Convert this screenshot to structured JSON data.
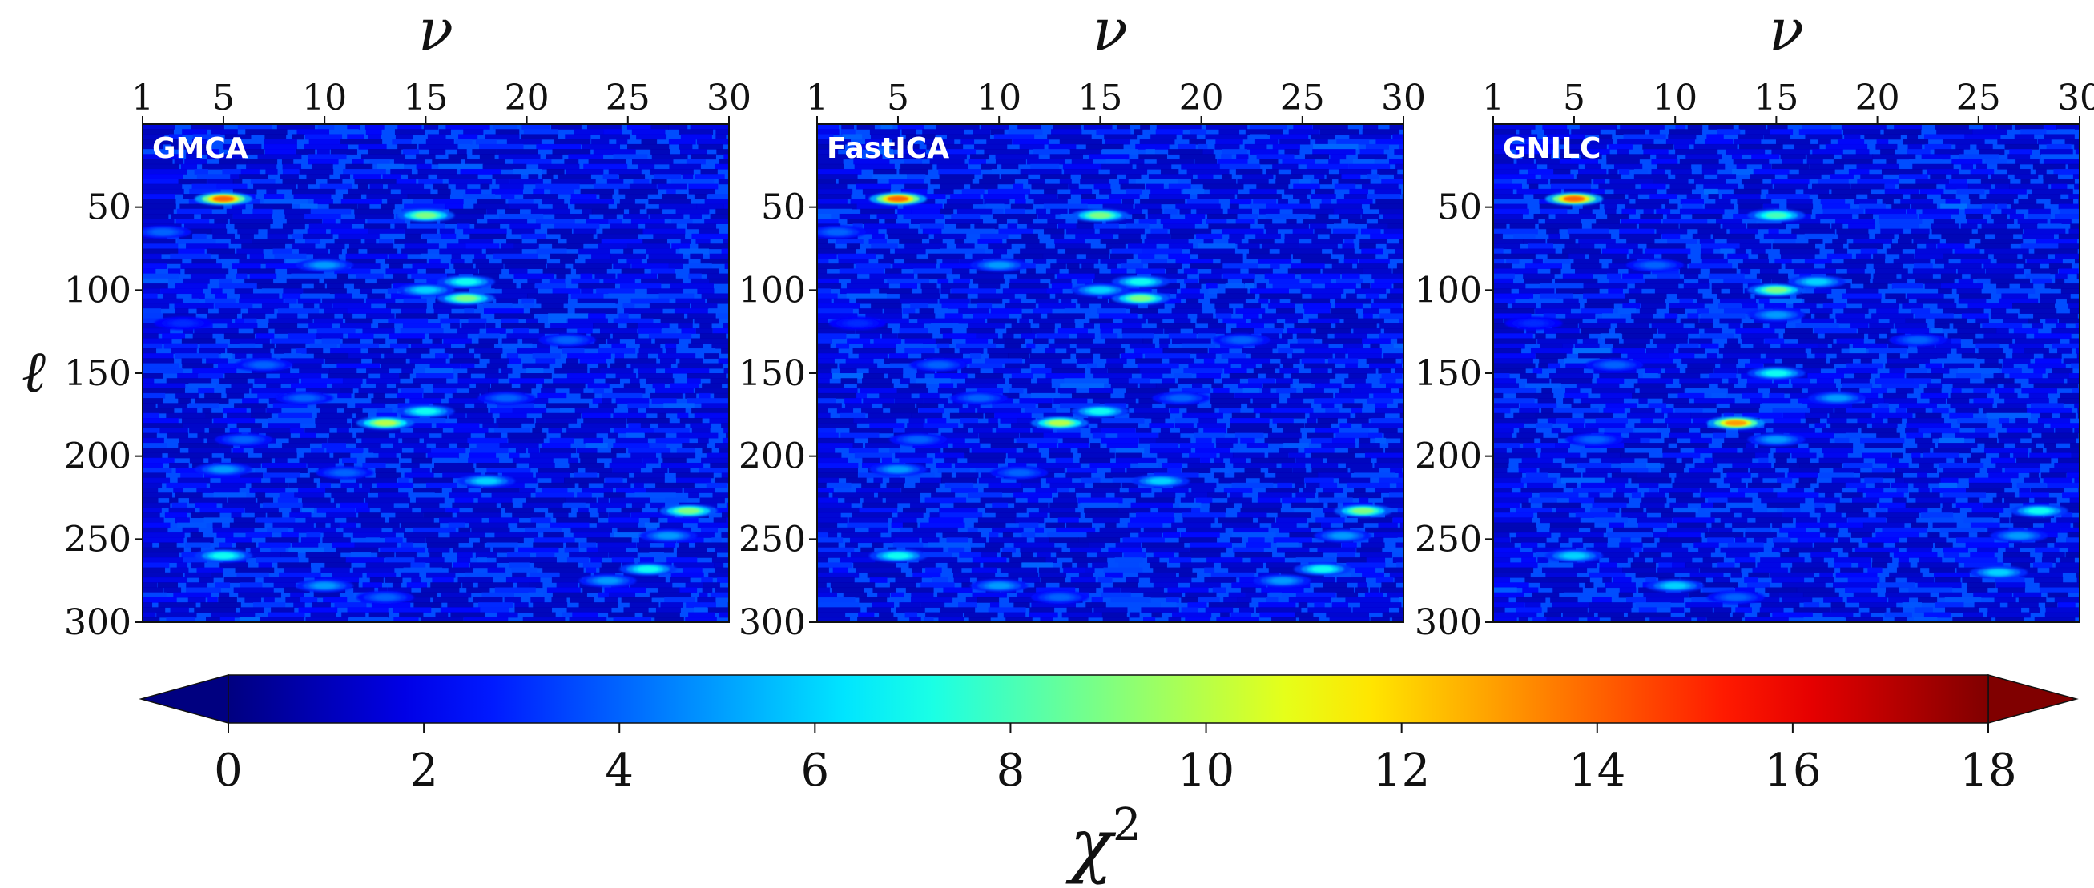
{
  "chart_data": {
    "type": "heatmap",
    "panels": [
      {
        "name": "GMCA",
        "blobs": [
          [
            5,
            45,
            14
          ],
          [
            15,
            55,
            9
          ],
          [
            17,
            95,
            7
          ],
          [
            17,
            105,
            9
          ],
          [
            15,
            100,
            6
          ],
          [
            13,
            180,
            10
          ],
          [
            15,
            173,
            7
          ],
          [
            10,
            85,
            5
          ],
          [
            18,
            215,
            6
          ],
          [
            28,
            233,
            9
          ],
          [
            26,
            268,
            7
          ],
          [
            5,
            260,
            7
          ],
          [
            5,
            208,
            5
          ],
          [
            10,
            278,
            5
          ],
          [
            2,
            65,
            4
          ],
          [
            9,
            165,
            4
          ],
          [
            22,
            130,
            4
          ],
          [
            27,
            248,
            5
          ],
          [
            24,
            275,
            5
          ],
          [
            13,
            285,
            4
          ],
          [
            7,
            145,
            4
          ],
          [
            19,
            165,
            4
          ],
          [
            11,
            210,
            4
          ],
          [
            3,
            120,
            3
          ],
          [
            6,
            190,
            4
          ]
        ]
      },
      {
        "name": "FastICA",
        "blobs": [
          [
            5,
            45,
            14
          ],
          [
            15,
            55,
            9
          ],
          [
            17,
            95,
            7
          ],
          [
            17,
            105,
            9
          ],
          [
            15,
            100,
            6
          ],
          [
            13,
            180,
            10
          ],
          [
            15,
            173,
            7
          ],
          [
            10,
            85,
            5
          ],
          [
            18,
            215,
            6
          ],
          [
            28,
            233,
            9
          ],
          [
            26,
            268,
            7
          ],
          [
            5,
            260,
            7
          ],
          [
            5,
            208,
            5
          ],
          [
            10,
            278,
            5
          ],
          [
            2,
            65,
            4
          ],
          [
            9,
            165,
            4
          ],
          [
            22,
            130,
            4
          ],
          [
            27,
            248,
            5
          ],
          [
            24,
            275,
            5
          ],
          [
            13,
            285,
            4
          ],
          [
            7,
            145,
            4
          ],
          [
            19,
            165,
            4
          ],
          [
            11,
            210,
            4
          ],
          [
            3,
            120,
            3
          ],
          [
            6,
            190,
            4
          ]
        ]
      },
      {
        "name": "GNILC",
        "blobs": [
          [
            5,
            45,
            14
          ],
          [
            15,
            55,
            8
          ],
          [
            15,
            100,
            9
          ],
          [
            15,
            150,
            7
          ],
          [
            13,
            180,
            13
          ],
          [
            17,
            95,
            6
          ],
          [
            15,
            115,
            5
          ],
          [
            15,
            190,
            5
          ],
          [
            18,
            165,
            5
          ],
          [
            28,
            233,
            7
          ],
          [
            26,
            270,
            6
          ],
          [
            10,
            278,
            6
          ],
          [
            5,
            260,
            6
          ],
          [
            9,
            85,
            4
          ],
          [
            27,
            248,
            5
          ],
          [
            13,
            285,
            4
          ],
          [
            3,
            120,
            3
          ],
          [
            7,
            145,
            4
          ],
          [
            22,
            130,
            4
          ],
          [
            6,
            190,
            4
          ]
        ]
      }
    ],
    "x": {
      "label": "ν",
      "range": [
        1,
        30
      ],
      "ticks": [
        1,
        5,
        10,
        15,
        20,
        25,
        30
      ]
    },
    "y": {
      "label": "ℓ",
      "range": [
        0,
        300
      ],
      "ticks": [
        50,
        100,
        150,
        200,
        250,
        300
      ]
    },
    "colorbar": {
      "label": "χ²",
      "colormap": "jet",
      "range": [
        0,
        18
      ],
      "ticks": [
        0,
        2,
        4,
        6,
        8,
        10,
        12,
        14,
        16,
        18
      ],
      "extend": "both",
      "orientation": "horizontal"
    }
  }
}
